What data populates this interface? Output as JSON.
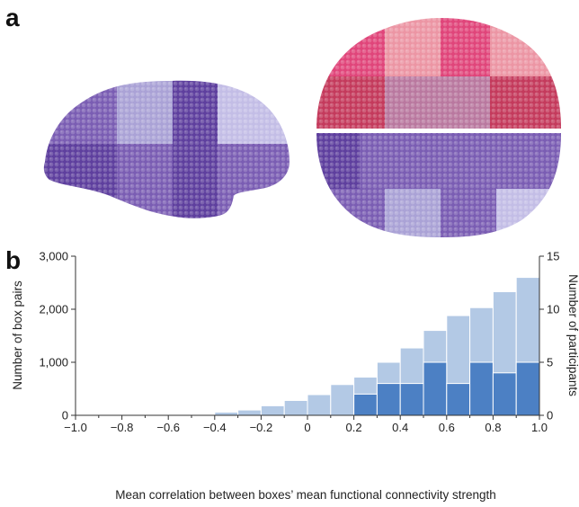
{
  "panel_a": {
    "label": "a",
    "colors": {
      "violet_dark": "#5e3f9e",
      "violet_mid": "#7a5db3",
      "violet_light": "#aaa2d6",
      "violet_pale": "#c3bde6",
      "pink_hot": "#e0457a",
      "pink_light": "#ec95a4",
      "crimson": "#c43a5c",
      "mauve": "#b9789f"
    }
  },
  "panel_b": {
    "label": "b",
    "chart_data": {
      "type": "bar",
      "xlabel": "Mean correlation between boxes’ mean functional connectivity strength",
      "ylabel_left": "Number of box pairs",
      "ylabel_right": "Number of participants",
      "xlim": [
        -1.0,
        1.0
      ],
      "ylim_left": [
        0,
        3000
      ],
      "ylim_right": [
        0,
        15
      ],
      "bin_width": 0.1,
      "x_ticks": [
        "−1.0",
        "−0.8",
        "−0.6",
        "−0.4",
        "−0.2",
        "0",
        "0.2",
        "0.4",
        "0.6",
        "0.8",
        "1.0"
      ],
      "y_ticks_left": [
        "0",
        "1,000",
        "2,000",
        "3,000"
      ],
      "y_ticks_right": [
        "0",
        "5",
        "10",
        "15"
      ],
      "series": [
        {
          "axis": "left",
          "color": "#b3c9e5",
          "bins": [
            {
              "x0": -0.5,
              "value": 15
            },
            {
              "x0": -0.4,
              "value": 60
            },
            {
              "x0": -0.3,
              "value": 100
            },
            {
              "x0": -0.2,
              "value": 180
            },
            {
              "x0": -0.1,
              "value": 280
            },
            {
              "x0": 0.0,
              "value": 390
            },
            {
              "x0": 0.1,
              "value": 580
            },
            {
              "x0": 0.2,
              "value": 720
            },
            {
              "x0": 0.3,
              "value": 1000
            },
            {
              "x0": 0.4,
              "value": 1270
            },
            {
              "x0": 0.5,
              "value": 1600
            },
            {
              "x0": 0.6,
              "value": 1880
            },
            {
              "x0": 0.7,
              "value": 2030
            },
            {
              "x0": 0.8,
              "value": 2330
            },
            {
              "x0": 0.9,
              "value": 2600
            }
          ]
        },
        {
          "axis": "right",
          "color": "#4c80c4",
          "bins": [
            {
              "x0": 0.2,
              "value": 2
            },
            {
              "x0": 0.3,
              "value": 3
            },
            {
              "x0": 0.4,
              "value": 3
            },
            {
              "x0": 0.5,
              "value": 5
            },
            {
              "x0": 0.6,
              "value": 3
            },
            {
              "x0": 0.7,
              "value": 5
            },
            {
              "x0": 0.8,
              "value": 4
            },
            {
              "x0": 0.9,
              "value": 5
            }
          ]
        }
      ]
    }
  }
}
